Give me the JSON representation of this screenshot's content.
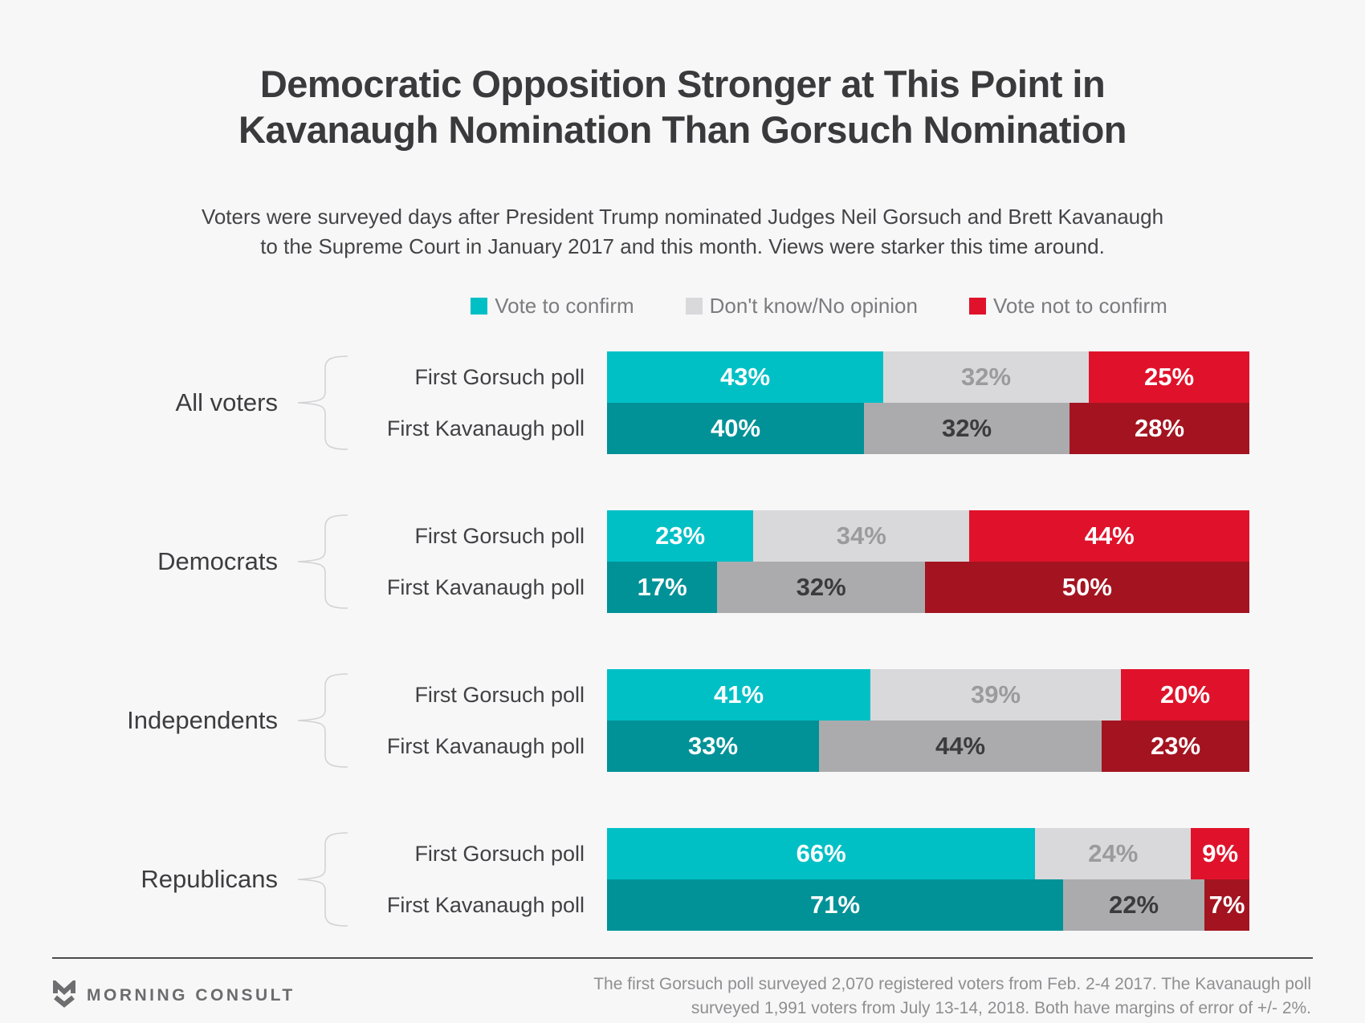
{
  "page": {
    "background": "#f7f7f8"
  },
  "header": {
    "title_line1": "Democratic Opposition Stronger at This Point in",
    "title_line2": "Kavanaugh Nomination Than Gorsuch Nomination",
    "subtitle_line1": "Voters were surveyed days after President Trump nominated Judges Neil Gorsuch and Brett Kavanaugh",
    "subtitle_line2": "to the Supreme Court in January 2017 and this month. Views were starker this time around."
  },
  "legend": {
    "items": [
      {
        "label": "Vote to confirm",
        "color": "#00c0c6"
      },
      {
        "label": "Don't know/No opinion",
        "color": "#d9d9db"
      },
      {
        "label": "Vote not to confirm",
        "color": "#e0122b"
      }
    ]
  },
  "chart_data": {
    "type": "bar",
    "orientation": "horizontal",
    "stacked": true,
    "unit": "%",
    "xlim": [
      0,
      100
    ],
    "series_names": [
      "Vote to confirm",
      "Don't know/No opinion",
      "Vote not to confirm"
    ],
    "colors": {
      "gorsuch_row": [
        "#00c0c6",
        "#d9d9db",
        "#e0122b"
      ],
      "kavanaugh_row": [
        "#009297",
        "#ababad",
        "#a31420"
      ]
    },
    "groups": [
      {
        "label": "All voters",
        "rows": [
          {
            "label": "First Gorsuch poll",
            "values": [
              43,
              32,
              25
            ]
          },
          {
            "label": "First Kavanaugh poll",
            "values": [
              40,
              32,
              28
            ]
          }
        ]
      },
      {
        "label": "Democrats",
        "rows": [
          {
            "label": "First Gorsuch poll",
            "values": [
              23,
              34,
              44
            ]
          },
          {
            "label": "First Kavanaugh poll",
            "values": [
              17,
              32,
              50
            ]
          }
        ]
      },
      {
        "label": "Independents",
        "rows": [
          {
            "label": "First Gorsuch poll",
            "values": [
              41,
              39,
              20
            ]
          },
          {
            "label": "First Kavanaugh poll",
            "values": [
              33,
              44,
              23
            ]
          }
        ]
      },
      {
        "label": "Republicans",
        "rows": [
          {
            "label": "First Gorsuch poll",
            "values": [
              66,
              24,
              9
            ]
          },
          {
            "label": "First Kavanaugh poll",
            "values": [
              71,
              22,
              7
            ]
          }
        ]
      }
    ]
  },
  "footer": {
    "logo_text": "MORNING CONSULT",
    "note_line1": "The first Gorsuch poll surveyed 2,070 registered voters from Feb. 2-4 2017. The Kavanaugh poll",
    "note_line2": "surveyed 1,991 voters from July 13-14, 2018. Both have margins of error of +/- 2%."
  }
}
